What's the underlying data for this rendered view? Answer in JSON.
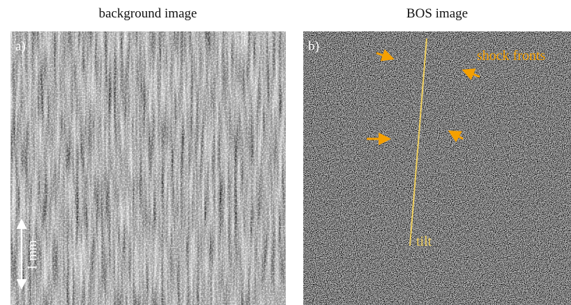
{
  "panels": [
    {
      "title": "background image",
      "label": "a)",
      "scale_bar": "1 mm"
    },
    {
      "title": "BOS image",
      "label": "b)",
      "annotations": {
        "shock": "shock fronts",
        "tilt": "tilt"
      }
    }
  ]
}
